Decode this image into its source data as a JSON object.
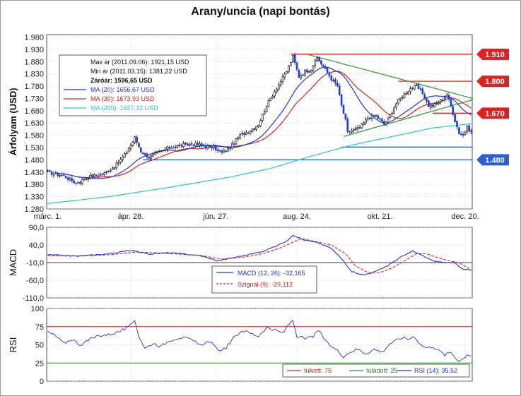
{
  "title": "Arany/uncia (napi bontás)",
  "colors": {
    "up": "#000000",
    "down": "#1f3fd1",
    "ma20": "#2233dd",
    "ma30": "#e0201e",
    "ma200": "#27c7c2",
    "trend": "#3a9a3a",
    "level": "#e0201e",
    "support": "#2c5fd6",
    "macd": "#2233dd",
    "signal": "#e0201e",
    "rsi": "#2233dd",
    "overbought": "#e0201e",
    "oversold": "#2e8a2e",
    "grid": "#c8c8c8"
  },
  "chart_data": [
    {
      "type": "line",
      "name": "price",
      "ylabel": "Árfolyam (USD)",
      "ylim": [
        1280,
        1990
      ],
      "y_ticks": [
        "1.980",
        "1.930",
        "1.880",
        "1.830",
        "1.780",
        "1.730",
        "1.680",
        "1.630",
        "1.580",
        "1.530",
        "1.480",
        "1.430",
        "1.380",
        "1.330",
        "1.280"
      ],
      "y_tick_values": [
        1980,
        1930,
        1880,
        1830,
        1780,
        1730,
        1680,
        1630,
        1580,
        1530,
        1480,
        1430,
        1380,
        1330,
        1280
      ],
      "x_ticks": [
        "márc. 1.",
        "ápr. 28.",
        "jún. 27.",
        "aug. 24.",
        "okt. 21.",
        "dec. 20."
      ],
      "x_tick_index": [
        0,
        41,
        83,
        123,
        164,
        206
      ],
      "n_days": 210,
      "close_anchors": [
        [
          0,
          1430
        ],
        [
          8,
          1415
        ],
        [
          14,
          1385
        ],
        [
          20,
          1410
        ],
        [
          28,
          1425
        ],
        [
          34,
          1460
        ],
        [
          38,
          1500
        ],
        [
          41,
          1540
        ],
        [
          43,
          1570
        ],
        [
          46,
          1515
        ],
        [
          50,
          1490
        ],
        [
          55,
          1510
        ],
        [
          60,
          1530
        ],
        [
          66,
          1540
        ],
        [
          72,
          1545
        ],
        [
          78,
          1535
        ],
        [
          82,
          1530
        ],
        [
          86,
          1508
        ],
        [
          90,
          1530
        ],
        [
          95,
          1580
        ],
        [
          100,
          1600
        ],
        [
          104,
          1625
        ],
        [
          108,
          1700
        ],
        [
          112,
          1760
        ],
        [
          115,
          1800
        ],
        [
          118,
          1840
        ],
        [
          121,
          1900
        ],
        [
          124,
          1820
        ],
        [
          127,
          1840
        ],
        [
          130,
          1850
        ],
        [
          133,
          1895
        ],
        [
          136,
          1860
        ],
        [
          140,
          1810
        ],
        [
          143,
          1780
        ],
        [
          145,
          1700
        ],
        [
          147,
          1640
        ],
        [
          148,
          1590
        ],
        [
          150,
          1600
        ],
        [
          154,
          1610
        ],
        [
          158,
          1650
        ],
        [
          162,
          1660
        ],
        [
          166,
          1625
        ],
        [
          168,
          1645
        ],
        [
          172,
          1710
        ],
        [
          175,
          1740
        ],
        [
          179,
          1770
        ],
        [
          182,
          1780
        ],
        [
          185,
          1750
        ],
        [
          188,
          1700
        ],
        [
          190,
          1700
        ],
        [
          194,
          1720
        ],
        [
          197,
          1745
        ],
        [
          199,
          1700
        ],
        [
          201,
          1640
        ],
        [
          203,
          1590
        ],
        [
          205,
          1580
        ],
        [
          207,
          1610
        ],
        [
          209,
          1597
        ]
      ],
      "stats": [
        {
          "label": "Max ár (2011.09.06): 1921,15 USD",
          "bold": false
        },
        {
          "label": "Min ár (2011.03.15): 1381,22 USD",
          "bold": false
        },
        {
          "label": "Záróár: 1596,65 USD",
          "bold": true
        }
      ],
      "series": [
        {
          "name": "MA (20): 1656,67 USD",
          "key": "ma20",
          "period": 20
        },
        {
          "name": "MA (30): 1673,93 USD",
          "key": "ma30",
          "period": 30
        },
        {
          "name": "MA (200): 1627,32 USD",
          "key": "ma200"
        }
      ],
      "ma200_anchors": [
        [
          0,
          1302
        ],
        [
          30,
          1330
        ],
        [
          60,
          1368
        ],
        [
          90,
          1410
        ],
        [
          110,
          1445
        ],
        [
          130,
          1495
        ],
        [
          150,
          1540
        ],
        [
          170,
          1575
        ],
        [
          190,
          1610
        ],
        [
          209,
          1627
        ]
      ],
      "resistance_levels": [
        {
          "value": 1910,
          "label": "1.910",
          "from": 120
        },
        {
          "value": 1800,
          "label": "1.800",
          "from": 173
        },
        {
          "value": 1670,
          "label": "1.670",
          "from": 190
        }
      ],
      "support_levels": [
        {
          "value": 1480,
          "label": "1.480",
          "from": 47
        },
        {
          "value": 1532,
          "label": "",
          "from": 145
        }
      ],
      "trendlines": [
        {
          "x1": 128,
          "y1": 1910,
          "x2": 210,
          "y2": 1730
        },
        {
          "x1": 146,
          "y1": 1575,
          "x2": 210,
          "y2": 1725
        }
      ]
    },
    {
      "type": "line",
      "name": "macd",
      "ylabel": "MACD",
      "ylim": [
        -110,
        90
      ],
      "y_ticks": [
        "90,0",
        "40,0",
        "-10,0",
        "-60,0",
        "-110,0"
      ],
      "y_tick_values": [
        90,
        40,
        -10,
        -60,
        -110
      ],
      "zero_line": -10,
      "series": [
        {
          "name": "MACD (12, 26): -32,165",
          "key": "macd",
          "dashed": false
        },
        {
          "name": "Szignál (9): -29,112",
          "key": "signal",
          "dashed": true
        }
      ],
      "macd_anchors": [
        [
          0,
          12
        ],
        [
          15,
          8
        ],
        [
          30,
          15
        ],
        [
          42,
          25
        ],
        [
          50,
          14
        ],
        [
          60,
          18
        ],
        [
          75,
          10
        ],
        [
          84,
          -5
        ],
        [
          95,
          8
        ],
        [
          105,
          20
        ],
        [
          112,
          35
        ],
        [
          118,
          52
        ],
        [
          121,
          68
        ],
        [
          126,
          55
        ],
        [
          134,
          45
        ],
        [
          140,
          30
        ],
        [
          146,
          -5
        ],
        [
          150,
          -35
        ],
        [
          156,
          -45
        ],
        [
          162,
          -35
        ],
        [
          168,
          -18
        ],
        [
          174,
          5
        ],
        [
          180,
          22
        ],
        [
          185,
          10
        ],
        [
          190,
          -5
        ],
        [
          196,
          -10
        ],
        [
          201,
          -12
        ],
        [
          205,
          -28
        ],
        [
          209,
          -32
        ]
      ],
      "signal_anchors": [
        [
          0,
          10
        ],
        [
          15,
          9
        ],
        [
          30,
          12
        ],
        [
          44,
          20
        ],
        [
          52,
          18
        ],
        [
          62,
          15
        ],
        [
          76,
          10
        ],
        [
          86,
          0
        ],
        [
          96,
          5
        ],
        [
          106,
          15
        ],
        [
          114,
          30
        ],
        [
          120,
          45
        ],
        [
          125,
          58
        ],
        [
          132,
          50
        ],
        [
          140,
          40
        ],
        [
          147,
          15
        ],
        [
          152,
          -20
        ],
        [
          158,
          -38
        ],
        [
          164,
          -38
        ],
        [
          170,
          -25
        ],
        [
          176,
          -5
        ],
        [
          182,
          15
        ],
        [
          187,
          15
        ],
        [
          192,
          5
        ],
        [
          198,
          -5
        ],
        [
          203,
          -10
        ],
        [
          207,
          -24
        ],
        [
          209,
          -29
        ]
      ]
    },
    {
      "type": "line",
      "name": "rsi",
      "ylabel": "RSI",
      "ylim": [
        0,
        100
      ],
      "y_ticks": [
        "100",
        "75",
        "50",
        "25",
        "0"
      ],
      "y_tick_values": [
        100,
        75,
        50,
        25,
        0
      ],
      "series": [
        {
          "name": "túlvett: 75",
          "key": "overbought",
          "value": 75
        },
        {
          "name": "túladott: 25",
          "key": "oversold",
          "value": 25
        },
        {
          "name": "RSI (14): 35,52",
          "key": "rsi"
        }
      ],
      "rsi_anchors": [
        [
          0,
          68
        ],
        [
          4,
          62
        ],
        [
          8,
          52
        ],
        [
          12,
          58
        ],
        [
          16,
          50
        ],
        [
          20,
          56
        ],
        [
          25,
          63
        ],
        [
          30,
          64
        ],
        [
          35,
          68
        ],
        [
          40,
          74
        ],
        [
          43,
          84
        ],
        [
          45,
          62
        ],
        [
          48,
          45
        ],
        [
          52,
          52
        ],
        [
          56,
          48
        ],
        [
          60,
          56
        ],
        [
          65,
          60
        ],
        [
          70,
          58
        ],
        [
          75,
          50
        ],
        [
          80,
          55
        ],
        [
          84,
          42
        ],
        [
          88,
          46
        ],
        [
          92,
          60
        ],
        [
          96,
          70
        ],
        [
          100,
          66
        ],
        [
          104,
          62
        ],
        [
          108,
          74
        ],
        [
          112,
          70
        ],
        [
          116,
          66
        ],
        [
          119,
          78
        ],
        [
          121,
          84
        ],
        [
          123,
          62
        ],
        [
          127,
          58
        ],
        [
          131,
          62
        ],
        [
          134,
          70
        ],
        [
          137,
          55
        ],
        [
          140,
          48
        ],
        [
          143,
          42
        ],
        [
          146,
          34
        ],
        [
          149,
          40
        ],
        [
          153,
          44
        ],
        [
          157,
          38
        ],
        [
          161,
          44
        ],
        [
          165,
          40
        ],
        [
          169,
          52
        ],
        [
          172,
          56
        ],
        [
          175,
          60
        ],
        [
          178,
          58
        ],
        [
          181,
          62
        ],
        [
          184,
          50
        ],
        [
          187,
          46
        ],
        [
          190,
          48
        ],
        [
          193,
          42
        ],
        [
          196,
          36
        ],
        [
          199,
          40
        ],
        [
          201,
          33
        ],
        [
          203,
          28
        ],
        [
          205,
          31
        ],
        [
          207,
          37
        ],
        [
          209,
          35.5
        ]
      ]
    }
  ]
}
